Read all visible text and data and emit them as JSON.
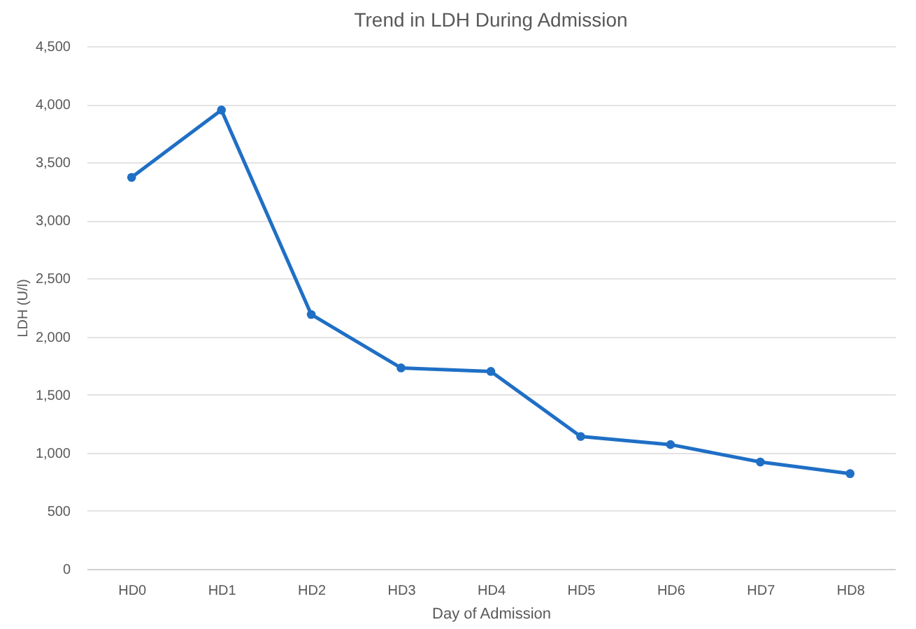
{
  "chart_data": {
    "type": "line",
    "title": "Trend in LDH During Admission",
    "xlabel": "Day of Admission",
    "ylabel": "LDH (U/l)",
    "categories": [
      "HD0",
      "HD1",
      "HD2",
      "HD3",
      "HD4",
      "HD5",
      "HD6",
      "HD7",
      "HD8"
    ],
    "series": [
      {
        "color": "#1f6fc5",
        "values": [
          3370,
          3950,
          2190,
          1730,
          1700,
          1140,
          1070,
          920,
          820
        ]
      }
    ],
    "ylim": [
      0,
      4500
    ],
    "yticks": [
      {
        "value": 0,
        "label": "0"
      },
      {
        "value": 500,
        "label": "500"
      },
      {
        "value": 1000,
        "label": "1,000"
      },
      {
        "value": 1500,
        "label": "1,500"
      },
      {
        "value": 2000,
        "label": "2,000"
      },
      {
        "value": 2500,
        "label": "2,500"
      },
      {
        "value": 3000,
        "label": "3,000"
      },
      {
        "value": 3500,
        "label": "3,500"
      },
      {
        "value": 4000,
        "label": "4,000"
      },
      {
        "value": 4500,
        "label": "4,500"
      }
    ],
    "grid": "y",
    "marker": "circle",
    "line_style": "solid",
    "legend": false
  }
}
